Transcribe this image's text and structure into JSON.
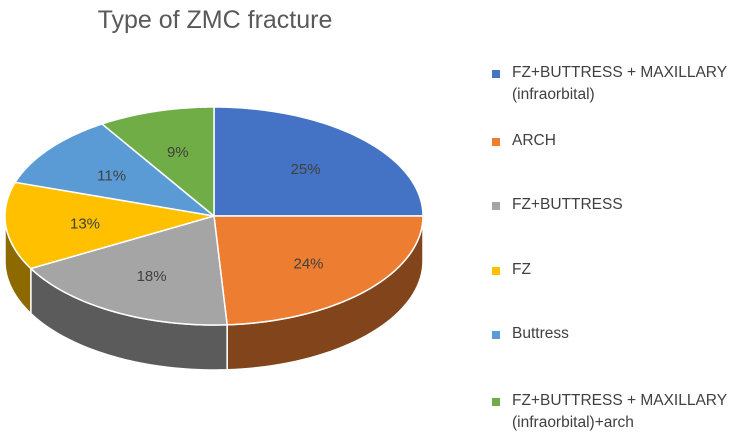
{
  "chart_data": {
    "type": "pie",
    "title": "Type of ZMC fracture",
    "categories": [
      "FZ+BUTTRESS + MAXILLARY (infraorbital)",
      "ARCH",
      "FZ+BUTTRESS",
      "FZ",
      "Buttress",
      "FZ+BUTTRESS + MAXILLARY (infraorbital)+arch"
    ],
    "values": [
      25,
      24,
      18,
      13,
      11,
      9
    ],
    "data_labels": [
      "25%",
      "24%",
      "18%",
      "13%",
      "11%",
      "9%"
    ],
    "colors": [
      "#4472C4",
      "#ED7D31",
      "#A5A5A5",
      "#FFC000",
      "#5B9BD5",
      "#70AD47"
    ],
    "legend_position": "right",
    "style": "3d-pie"
  },
  "legend": {
    "items": [
      {
        "line1": "FZ+BUTTRESS + MAXILLARY",
        "line2": "(infraorbital)"
      },
      {
        "line1": "ARCH",
        "line2": ""
      },
      {
        "line1": "FZ+BUTTRESS",
        "line2": ""
      },
      {
        "line1": "FZ",
        "line2": ""
      },
      {
        "line1": "Buttress",
        "line2": ""
      },
      {
        "line1": "FZ+BUTTRESS + MAXILLARY",
        "line2": "(infraorbital)+arch"
      }
    ]
  }
}
